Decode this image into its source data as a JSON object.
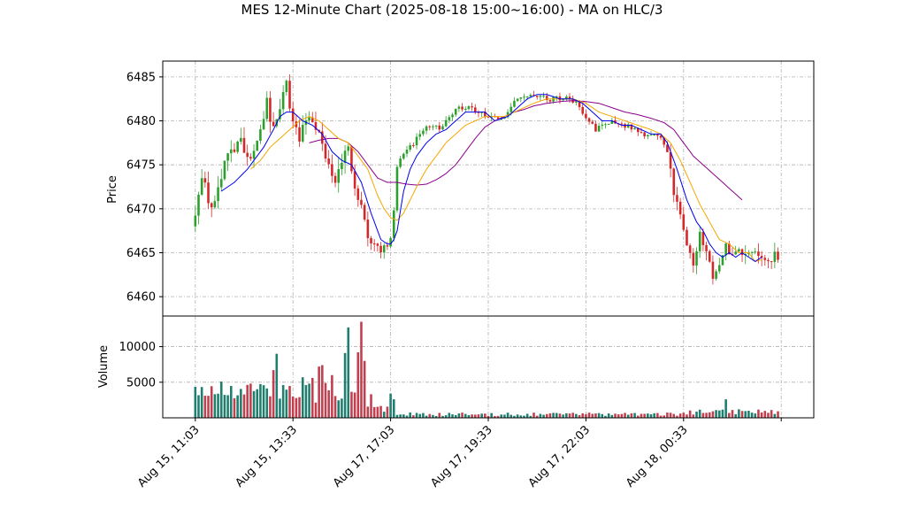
{
  "chart_data": {
    "type": "candlestick",
    "title": "MES 12-Minute Chart (2025-08-18 15:00~16:00) - MA on HLC/3",
    "price_panel": {
      "ylabel": "Price",
      "ylim": [
        6457.8,
        6486.8
      ],
      "yticks": [
        6460,
        6465,
        6470,
        6475,
        6480,
        6485
      ],
      "ytick_labels": [
        "6460",
        "6465",
        "6470",
        "6475",
        "6480",
        "6485"
      ],
      "grid": true
    },
    "volume_panel": {
      "ylabel": "Volume",
      "ylim": [
        0,
        14300
      ],
      "yticks": [
        5000,
        10000
      ],
      "ytick_labels": [
        "5000",
        "10000"
      ],
      "grid": true
    },
    "x": {
      "bar_count": 180,
      "ticks": [
        0,
        30,
        60,
        90,
        120,
        150,
        180
      ],
      "tick_labels": [
        "Aug 15, 11:03",
        "Aug 15, 13:33",
        "Aug 17, 17:03",
        "Aug 17, 19:33",
        "Aug 17, 22:03",
        "Aug 18, 00:33",
        ""
      ],
      "xlim": [
        -10,
        190
      ]
    },
    "colors": {
      "up": "#2ca02c",
      "down": "#d62728",
      "vol_up": "#1f7f6f",
      "vol_down": "#c04050",
      "ma_fast": "#0000ee",
      "ma_mid": "#f5a800",
      "ma_slow": "#8b008b",
      "grid": "#b0b0b0"
    },
    "price_path": [
      [
        0,
        6468.0
      ],
      [
        3,
        6474.0
      ],
      [
        6,
        6470.0
      ],
      [
        9,
        6474.0
      ],
      [
        12,
        6476.5
      ],
      [
        15,
        6478.0
      ],
      [
        18,
        6475.0
      ],
      [
        20,
        6478.0
      ],
      [
        23,
        6482.0
      ],
      [
        25,
        6479.0
      ],
      [
        27,
        6482.0
      ],
      [
        29,
        6484.0
      ],
      [
        31,
        6480.0
      ],
      [
        33,
        6477.5
      ],
      [
        35,
        6480.0
      ],
      [
        37,
        6480.0
      ],
      [
        39,
        6479.5
      ],
      [
        41,
        6476.0
      ],
      [
        43,
        6473.0
      ],
      [
        46,
        6475.0
      ],
      [
        48,
        6477.0
      ],
      [
        50,
        6472.0
      ],
      [
        52,
        6470.0
      ],
      [
        54,
        6466.5
      ],
      [
        56,
        6466.0
      ],
      [
        58,
        6465.5
      ],
      [
        60,
        6465.5
      ],
      [
        61,
        6466.5
      ],
      [
        62,
        6470.0
      ],
      [
        63,
        6475.0
      ],
      [
        65,
        6476.0
      ],
      [
        67,
        6477.0
      ],
      [
        70,
        6478.5
      ],
      [
        73,
        6479.5
      ],
      [
        76,
        6479.0
      ],
      [
        79,
        6480.5
      ],
      [
        82,
        6481.5
      ],
      [
        85,
        6481.5
      ],
      [
        88,
        6481.0
      ],
      [
        91,
        6480.5
      ],
      [
        94,
        6480.0
      ],
      [
        97,
        6481.0
      ],
      [
        100,
        6482.5
      ],
      [
        103,
        6483.0
      ],
      [
        106,
        6483.0
      ],
      [
        109,
        6482.5
      ],
      [
        112,
        6482.5
      ],
      [
        115,
        6482.5
      ],
      [
        118,
        6482.0
      ],
      [
        121,
        6480.5
      ],
      [
        124,
        6479.0
      ],
      [
        127,
        6479.5
      ],
      [
        130,
        6480.0
      ],
      [
        133,
        6479.5
      ],
      [
        136,
        6479.0
      ],
      [
        139,
        6478.5
      ],
      [
        142,
        6478.5
      ],
      [
        144,
        6478.0
      ],
      [
        146,
        6476.0
      ],
      [
        148,
        6472.0
      ],
      [
        150,
        6470.0
      ],
      [
        152,
        6466.0
      ],
      [
        154,
        6464.0
      ],
      [
        156,
        6467.0
      ],
      [
        158,
        6465.5
      ],
      [
        160,
        6462.0
      ],
      [
        162,
        6463.0
      ],
      [
        164,
        6465.5
      ],
      [
        166,
        6465.0
      ],
      [
        168,
        6465.5
      ],
      [
        170,
        6465.0
      ],
      [
        172,
        6464.5
      ],
      [
        174,
        6464.5
      ]
    ],
    "ma_fast_path": [
      [
        8,
        6472.0
      ],
      [
        12,
        6473.0
      ],
      [
        16,
        6474.5
      ],
      [
        19,
        6476.0
      ],
      [
        21,
        6477.0
      ],
      [
        24,
        6479.0
      ],
      [
        26,
        6480.5
      ],
      [
        28,
        6481.0
      ],
      [
        30,
        6481.0
      ],
      [
        33,
        6480.0
      ],
      [
        36,
        6479.5
      ],
      [
        39,
        6478.5
      ],
      [
        42,
        6476.5
      ],
      [
        45,
        6475.5
      ],
      [
        48,
        6475.0
      ],
      [
        51,
        6473.0
      ],
      [
        54,
        6469.5
      ],
      [
        57,
        6466.5
      ],
      [
        59,
        6466.0
      ],
      [
        60,
        6466.0
      ],
      [
        61,
        6466.5
      ],
      [
        62,
        6467.5
      ],
      [
        64,
        6472.0
      ],
      [
        66,
        6474.5
      ],
      [
        68,
        6476.0
      ],
      [
        71,
        6477.5
      ],
      [
        74,
        6478.5
      ],
      [
        77,
        6479.0
      ],
      [
        80,
        6480.0
      ],
      [
        83,
        6481.0
      ],
      [
        86,
        6481.0
      ],
      [
        89,
        6481.0
      ],
      [
        92,
        6480.0
      ],
      [
        96,
        6480.5
      ],
      [
        99,
        6481.5
      ],
      [
        102,
        6482.5
      ],
      [
        105,
        6483.0
      ],
      [
        108,
        6483.0
      ],
      [
        112,
        6482.5
      ],
      [
        116,
        6482.5
      ],
      [
        119,
        6482.0
      ],
      [
        122,
        6481.0
      ],
      [
        125,
        6480.0
      ],
      [
        128,
        6480.0
      ],
      [
        131,
        6479.5
      ],
      [
        134,
        6479.5
      ],
      [
        137,
        6479.0
      ],
      [
        140,
        6478.5
      ],
      [
        143,
        6478.5
      ],
      [
        145,
        6477.5
      ],
      [
        148,
        6474.5
      ],
      [
        151,
        6471.0
      ],
      [
        154,
        6468.5
      ],
      [
        156,
        6467.5
      ],
      [
        158,
        6466.0
      ],
      [
        160,
        6465.0
      ],
      [
        162,
        6464.5
      ],
      [
        164,
        6465.0
      ],
      [
        166,
        6464.5
      ],
      [
        168,
        6465.0
      ],
      [
        170,
        6464.5
      ],
      [
        172,
        6464.0
      ],
      [
        174,
        6464.5
      ]
    ],
    "ma_mid_path": [
      [
        17,
        6474.5
      ],
      [
        20,
        6475.5
      ],
      [
        23,
        6477.0
      ],
      [
        26,
        6478.0
      ],
      [
        29,
        6479.0
      ],
      [
        32,
        6480.0
      ],
      [
        35,
        6480.5
      ],
      [
        38,
        6480.0
      ],
      [
        41,
        6479.0
      ],
      [
        44,
        6478.0
      ],
      [
        47,
        6477.5
      ],
      [
        50,
        6476.0
      ],
      [
        53,
        6474.5
      ],
      [
        56,
        6471.5
      ],
      [
        58,
        6470.0
      ],
      [
        60,
        6469.0
      ],
      [
        62,
        6468.7
      ],
      [
        64,
        6469.5
      ],
      [
        66,
        6471.0
      ],
      [
        68,
        6472.5
      ],
      [
        71,
        6474.5
      ],
      [
        74,
        6476.0
      ],
      [
        77,
        6477.5
      ],
      [
        80,
        6478.5
      ],
      [
        83,
        6479.5
      ],
      [
        86,
        6480.0
      ],
      [
        89,
        6480.5
      ],
      [
        92,
        6480.5
      ],
      [
        95,
        6480.5
      ],
      [
        98,
        6481.0
      ],
      [
        101,
        6481.5
      ],
      [
        104,
        6482.0
      ],
      [
        108,
        6482.5
      ],
      [
        112,
        6482.5
      ],
      [
        116,
        6482.5
      ],
      [
        120,
        6482.0
      ],
      [
        124,
        6481.0
      ],
      [
        128,
        6480.5
      ],
      [
        132,
        6480.0
      ],
      [
        136,
        6479.5
      ],
      [
        140,
        6479.0
      ],
      [
        143,
        6478.5
      ],
      [
        146,
        6477.5
      ],
      [
        149,
        6475.5
      ],
      [
        152,
        6473.0
      ],
      [
        155,
        6470.5
      ],
      [
        158,
        6468.5
      ],
      [
        161,
        6466.5
      ],
      [
        164,
        6466.0
      ],
      [
        167,
        6465.0
      ],
      [
        170,
        6465.0
      ],
      [
        172,
        6464.0
      ],
      [
        174,
        6464.2
      ]
    ],
    "ma_slow_path": [
      [
        35,
        6477.5
      ],
      [
        38,
        6477.8
      ],
      [
        41,
        6478.0
      ],
      [
        44,
        6478.0
      ],
      [
        47,
        6477.5
      ],
      [
        50,
        6476.5
      ],
      [
        53,
        6475.0
      ],
      [
        56,
        6473.5
      ],
      [
        59,
        6473.0
      ],
      [
        62,
        6473.0
      ],
      [
        65,
        6472.8
      ],
      [
        68,
        6472.7
      ],
      [
        71,
        6472.8
      ],
      [
        74,
        6473.3
      ],
      [
        77,
        6474.0
      ],
      [
        80,
        6475.0
      ],
      [
        83,
        6476.5
      ],
      [
        86,
        6478.0
      ],
      [
        89,
        6479.3
      ],
      [
        92,
        6480.0
      ],
      [
        95,
        6480.5
      ],
      [
        98,
        6481.0
      ],
      [
        101,
        6481.3
      ],
      [
        104,
        6481.7
      ],
      [
        108,
        6482.0
      ],
      [
        112,
        6482.2
      ],
      [
        116,
        6482.3
      ],
      [
        120,
        6482.2
      ],
      [
        124,
        6482.0
      ],
      [
        128,
        6481.5
      ],
      [
        132,
        6481.0
      ],
      [
        136,
        6480.7
      ],
      [
        140,
        6480.3
      ],
      [
        144,
        6479.8
      ],
      [
        147,
        6479.0
      ],
      [
        150,
        6477.5
      ],
      [
        153,
        6476.0
      ],
      [
        156,
        6475.0
      ],
      [
        159,
        6474.0
      ],
      [
        162,
        6473.0
      ],
      [
        165,
        6472.0
      ],
      [
        168,
        6471.0
      ]
    ]
  }
}
